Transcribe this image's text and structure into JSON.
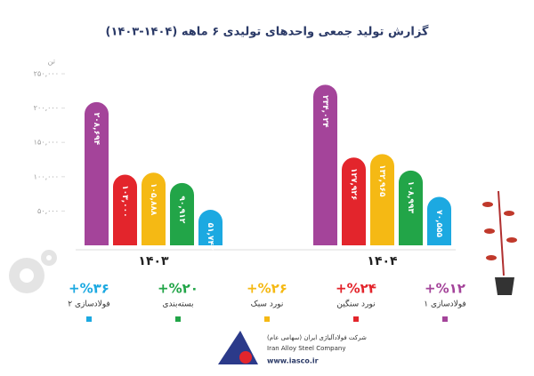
{
  "chart_data": {
    "type": "bar",
    "title": "گزارش تولید جمعی واحدهای تولیدی ۶ ماهه (۱۴۰۴-۱۴۰۳)",
    "y_label": "تن",
    "categories": [
      "۱۴۰۳",
      "۱۴۰۴"
    ],
    "series": [
      {
        "name": "فولادسازی ۱",
        "color": "#a4449a",
        "values": [
          208694,
          234024
        ],
        "value_labels": [
          "۲۰۸,۶۹۴",
          "۲۳۴,۰۲۴"
        ],
        "change": "+%۱۲"
      },
      {
        "name": "نورد سنگین",
        "color": "#e3252c",
        "values": [
          103000,
          127926
        ],
        "value_labels": [
          "۱۰۳,۰۰۰",
          "۱۲۷,۹۲۶"
        ],
        "change": "+%۲۴"
      },
      {
        "name": "نورد سبک",
        "color": "#f5b914",
        "values": [
          105888,
          132965
        ],
        "value_labels": [
          "۱۰۵,۸۸۸",
          "۱۳۲,۹۶۵"
        ],
        "change": "+%۲۶"
      },
      {
        "name": "بسته‌بندی",
        "color": "#22a548",
        "values": [
          90912,
          108993
        ],
        "value_labels": [
          "۹۰,۹۱۲",
          "۱۰۸,۹۹۳"
        ],
        "change": "+%۲۰"
      },
      {
        "name": "فولادسازی ۲",
        "color": "#1ca9e1",
        "values": [
          51747,
          70555
        ],
        "value_labels": [
          "۵۱,۷۴۷",
          "۷۰,۵۵۵"
        ],
        "change": "+%۳۶"
      }
    ],
    "ylim": [
      0,
      250000
    ],
    "yticks": [
      {
        "value": 50000,
        "label": "۵۰,۰۰۰"
      },
      {
        "value": 100000,
        "label": "۱۰۰,۰۰۰"
      },
      {
        "value": 150000,
        "label": "۱۵۰,۰۰۰"
      },
      {
        "value": 200000,
        "label": "۲۰۰,۰۰۰"
      },
      {
        "value": 250000,
        "label": "۲۵۰,۰۰۰"
      }
    ],
    "company": {
      "name_fa": "شرکت فولادآلیاژی ایران (سهامی عام)",
      "name_en": "Iran Alloy Steel Company",
      "website": "www.iasco.ir"
    }
  }
}
